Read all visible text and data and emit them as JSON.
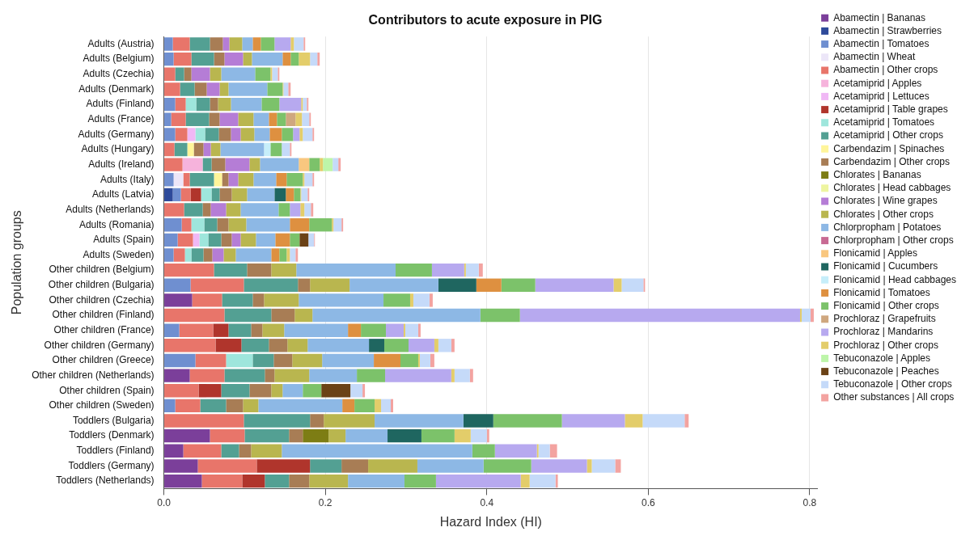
{
  "chart_data": {
    "type": "bar",
    "orientation": "horizontal",
    "stacked": true,
    "title": "Contributors to acute exposure in PIG",
    "xlabel": "Hazard Index (HI)",
    "ylabel": "Population groups",
    "categories": [
      "Adults (Austria)",
      "Adults (Belgium)",
      "Adults (Czechia)",
      "Adults (Denmark)",
      "Adults (Finland)",
      "Adults (France)",
      "Adults (Germany)",
      "Adults (Hungary)",
      "Adults (Ireland)",
      "Adults (Italy)",
      "Adults (Latvia)",
      "Adults (Netherlands)",
      "Adults (Romania)",
      "Adults (Spain)",
      "Adults (Sweden)",
      "Other children (Belgium)",
      "Other children (Bulgaria)",
      "Other children (Czechia)",
      "Other children (Finland)",
      "Other children (France)",
      "Other children (Germany)",
      "Other children (Greece)",
      "Other children (Netherlands)",
      "Other children (Spain)",
      "Other children (Sweden)",
      "Toddlers (Bulgaria)",
      "Toddlers (Denmark)",
      "Toddlers (Finland)",
      "Toddlers (Germany)",
      "Toddlers (Netherlands)"
    ],
    "xlim": [
      0,
      0.81
    ],
    "xticks": [
      {
        "value": 0,
        "label": "0.0"
      },
      {
        "value": 0.2,
        "label": "0.2"
      },
      {
        "value": 0.4,
        "label": "0.4"
      },
      {
        "value": 0.6,
        "label": "0.6"
      },
      {
        "value": 0.8,
        "label": "0.8"
      }
    ],
    "grid": "x",
    "legend": "right",
    "series": [
      {
        "name": "Abamectin | Bananas",
        "color": "#7b3f9a",
        "values": [
          null,
          null,
          null,
          null,
          null,
          null,
          null,
          null,
          null,
          null,
          null,
          null,
          null,
          null,
          null,
          null,
          null,
          0.035,
          null,
          null,
          null,
          null,
          0.032,
          null,
          null,
          null,
          0.057,
          0.024,
          0.042,
          0.047
        ]
      },
      {
        "name": "Abamectin | Strawberries",
        "color": "#2e4a9a",
        "values": [
          null,
          null,
          null,
          null,
          null,
          null,
          null,
          null,
          null,
          null,
          0.011,
          null,
          null,
          null,
          null,
          null,
          null,
          null,
          null,
          null,
          null,
          null,
          null,
          null,
          null,
          null,
          null,
          null,
          null,
          null
        ]
      },
      {
        "name": "Abamectin | Tomatoes",
        "color": "#6f8fd0",
        "values": [
          0.011,
          0.012,
          null,
          null,
          0.014,
          0.009,
          0.014,
          null,
          null,
          0.012,
          0.01,
          null,
          0.022,
          0.017,
          0.012,
          null,
          0.033,
          null,
          null,
          0.019,
          null,
          0.039,
          null,
          null,
          0.014,
          null,
          null,
          null,
          null,
          null
        ]
      },
      {
        "name": "Abamectin | Wheat",
        "color": "#ece6f8",
        "values": [
          null,
          null,
          null,
          null,
          null,
          null,
          null,
          null,
          null,
          0.012,
          null,
          null,
          null,
          null,
          null,
          null,
          null,
          null,
          null,
          null,
          null,
          null,
          null,
          null,
          null,
          null,
          null,
          null,
          null,
          null
        ]
      },
      {
        "name": "Abamectin | Other crops",
        "color": "#e8756a",
        "values": [
          0.021,
          0.022,
          0.014,
          0.02,
          0.013,
          0.018,
          0.015,
          0.013,
          0.023,
          0.008,
          0.012,
          0.025,
          0.012,
          0.019,
          0.014,
          0.062,
          0.066,
          0.037,
          0.075,
          0.042,
          0.064,
          0.038,
          0.043,
          0.043,
          0.031,
          0.099,
          0.043,
          0.047,
          0.073,
          0.05
        ]
      },
      {
        "name": "Acetamiprid | Apples",
        "color": "#f6b3dc",
        "values": [
          null,
          null,
          null,
          null,
          null,
          null,
          null,
          null,
          0.025,
          null,
          null,
          null,
          null,
          null,
          null,
          null,
          null,
          null,
          null,
          null,
          null,
          null,
          null,
          null,
          null,
          null,
          null,
          null,
          null,
          null
        ]
      },
      {
        "name": "Acetamiprid | Lettuces",
        "color": "#f0b8f5",
        "values": [
          null,
          null,
          null,
          null,
          null,
          null,
          0.01,
          null,
          null,
          null,
          null,
          null,
          null,
          0.008,
          null,
          null,
          null,
          null,
          null,
          null,
          null,
          null,
          null,
          null,
          null,
          null,
          null,
          null,
          null,
          null
        ]
      },
      {
        "name": "Acetamiprid | Table grapes",
        "color": "#b0352c",
        "values": [
          null,
          null,
          null,
          null,
          null,
          null,
          null,
          null,
          null,
          null,
          0.013,
          null,
          null,
          null,
          null,
          null,
          null,
          null,
          null,
          0.019,
          0.032,
          null,
          null,
          0.028,
          null,
          null,
          null,
          null,
          0.066,
          0.028
        ]
      },
      {
        "name": "Acetamiprid | Tomatoes",
        "color": "#9ee6dc",
        "values": [
          null,
          null,
          null,
          null,
          0.013,
          null,
          0.012,
          null,
          null,
          null,
          0.013,
          null,
          0.016,
          0.011,
          0.008,
          null,
          null,
          null,
          null,
          null,
          null,
          0.033,
          null,
          null,
          null,
          null,
          null,
          null,
          null,
          null
        ]
      },
      {
        "name": "Acetamiprid | Other crops",
        "color": "#53a093",
        "values": [
          0.025,
          0.028,
          0.011,
          0.018,
          0.017,
          0.029,
          0.017,
          0.016,
          0.011,
          0.03,
          0.01,
          0.023,
          0.016,
          0.016,
          0.015,
          0.041,
          0.067,
          0.038,
          0.058,
          0.028,
          0.034,
          0.026,
          0.05,
          0.035,
          0.032,
          0.082,
          0.055,
          0.022,
          0.039,
          0.03
        ]
      },
      {
        "name": "Carbendazim | Spinaches",
        "color": "#fff59a",
        "values": [
          null,
          null,
          null,
          null,
          null,
          null,
          null,
          0.008,
          null,
          0.01,
          null,
          null,
          null,
          null,
          null,
          null,
          null,
          null,
          null,
          null,
          null,
          null,
          null,
          null,
          null,
          null,
          null,
          null,
          null,
          null
        ]
      },
      {
        "name": "Carbendazim | Other crops",
        "color": "#a87d55",
        "values": [
          0.016,
          0.013,
          0.009,
          0.015,
          0.01,
          0.013,
          0.015,
          0.012,
          0.017,
          0.008,
          0.015,
          0.01,
          0.014,
          0.013,
          0.011,
          0.03,
          0.015,
          0.014,
          0.029,
          0.014,
          0.023,
          0.023,
          0.012,
          0.027,
          0.021,
          0.017,
          0.017,
          0.015,
          0.033,
          0.025
        ]
      },
      {
        "name": "Chlorates | Bananas",
        "color": "#7d7d14",
        "values": [
          null,
          null,
          null,
          null,
          null,
          null,
          null,
          null,
          null,
          null,
          null,
          null,
          null,
          null,
          null,
          null,
          null,
          null,
          null,
          null,
          null,
          null,
          null,
          null,
          null,
          null,
          0.032,
          null,
          null,
          null
        ]
      },
      {
        "name": "Chlorates | Head cabbages",
        "color": "#eef5a0",
        "values": [
          null,
          null,
          null,
          null,
          null,
          null,
          null,
          null,
          null,
          null,
          null,
          null,
          null,
          null,
          null,
          null,
          null,
          null,
          null,
          null,
          null,
          null,
          null,
          null,
          null,
          null,
          null,
          null,
          null,
          null
        ]
      },
      {
        "name": "Chlorates | Wine grapes",
        "color": "#b57dd6",
        "values": [
          0.008,
          0.023,
          0.023,
          0.016,
          null,
          0.023,
          0.012,
          0.009,
          0.03,
          0.012,
          null,
          0.019,
          null,
          0.011,
          0.014,
          null,
          null,
          null,
          null,
          null,
          null,
          null,
          null,
          null,
          null,
          null,
          null,
          null,
          null,
          null
        ]
      },
      {
        "name": "Chlorates | Other crops",
        "color": "#b9b64f",
        "values": [
          0.016,
          0.011,
          0.014,
          0.011,
          0.016,
          0.019,
          0.017,
          0.012,
          0.013,
          0.019,
          0.019,
          0.018,
          0.022,
          0.019,
          0.015,
          0.031,
          0.049,
          0.043,
          0.022,
          0.027,
          0.025,
          0.037,
          0.043,
          0.014,
          0.019,
          0.063,
          0.021,
          0.038,
          0.061,
          0.048
        ]
      },
      {
        "name": "Chlorpropham | Potatoes",
        "color": "#8db8e5",
        "values": [
          0.013,
          0.038,
          0.042,
          0.048,
          0.038,
          0.019,
          0.019,
          0.054,
          0.048,
          0.028,
          0.034,
          0.047,
          0.054,
          0.024,
          0.044,
          0.123,
          0.11,
          0.105,
          0.208,
          0.079,
          0.076,
          0.064,
          0.059,
          0.025,
          0.104,
          0.11,
          0.052,
          0.236,
          0.082,
          0.07
        ]
      },
      {
        "name": "Chlorpropham | Other crops",
        "color": "#c86a93",
        "values": [
          null,
          null,
          null,
          null,
          null,
          null,
          null,
          null,
          null,
          null,
          null,
          null,
          null,
          null,
          null,
          null,
          null,
          null,
          null,
          null,
          null,
          null,
          null,
          null,
          null,
          null,
          null,
          null,
          null,
          null
        ]
      },
      {
        "name": "Flonicamid | Apples",
        "color": "#f9c77f",
        "values": [
          null,
          null,
          null,
          null,
          null,
          null,
          null,
          null,
          0.013,
          null,
          null,
          null,
          null,
          null,
          null,
          null,
          null,
          null,
          null,
          null,
          null,
          null,
          null,
          null,
          null,
          null,
          null,
          null,
          null,
          null
        ]
      },
      {
        "name": "Flonicamid | Cucumbers",
        "color": "#1f6660",
        "values": [
          null,
          null,
          null,
          null,
          null,
          null,
          null,
          null,
          null,
          null,
          0.014,
          null,
          null,
          null,
          null,
          null,
          0.047,
          null,
          null,
          null,
          0.019,
          null,
          null,
          null,
          null,
          0.037,
          0.042,
          null,
          null,
          null
        ]
      },
      {
        "name": "Flonicamid | Head cabbages",
        "color": "#c6eefa",
        "values": [
          null,
          null,
          null,
          null,
          null,
          null,
          null,
          0.008,
          null,
          null,
          null,
          null,
          null,
          null,
          null,
          null,
          null,
          null,
          null,
          null,
          null,
          null,
          null,
          null,
          null,
          null,
          null,
          null,
          null,
          null
        ]
      },
      {
        "name": "Flonicamid | Tomatoes",
        "color": "#de9040",
        "values": [
          0.01,
          0.01,
          null,
          null,
          null,
          0.01,
          0.015,
          null,
          null,
          0.013,
          0.01,
          null,
          0.024,
          0.018,
          0.01,
          null,
          0.031,
          null,
          null,
          0.016,
          null,
          0.033,
          null,
          null,
          0.015,
          null,
          null,
          null,
          null,
          null
        ]
      },
      {
        "name": "Flonicamid | Other crops",
        "color": "#7cc26a",
        "values": [
          0.017,
          0.01,
          0.019,
          0.019,
          0.022,
          0.011,
          0.014,
          0.014,
          0.013,
          0.02,
          0.008,
          0.014,
          0.028,
          0.012,
          0.009,
          0.045,
          0.042,
          0.033,
          0.049,
          0.031,
          0.03,
          0.022,
          0.035,
          0.023,
          0.025,
          0.085,
          0.041,
          0.028,
          0.059,
          0.039
        ]
      },
      {
        "name": "Prochloraz | Grapefruits",
        "color": "#cfa77f",
        "values": [
          null,
          null,
          null,
          null,
          null,
          0.012,
          null,
          null,
          null,
          null,
          null,
          null,
          null,
          null,
          null,
          null,
          null,
          null,
          null,
          null,
          null,
          null,
          null,
          null,
          null,
          null,
          null,
          null,
          null,
          null
        ]
      },
      {
        "name": "Prochloraz | Mandarins",
        "color": "#b7a9ef",
        "values": [
          0.02,
          null,
          null,
          null,
          0.027,
          null,
          0.008,
          null,
          null,
          null,
          null,
          0.013,
          null,
          null,
          null,
          0.04,
          0.097,
          null,
          0.347,
          0.022,
          0.032,
          null,
          0.082,
          null,
          null,
          0.078,
          null,
          0.052,
          0.069,
          0.105
        ]
      },
      {
        "name": "Prochloraz | Other crops",
        "color": "#e3cd6a",
        "values": [
          0.004,
          0.014,
          0.002,
          0.001,
          0.002,
          0.008,
          0.004,
          null,
          0.004,
          0.002,
          0.001,
          0.005,
          0.002,
          null,
          0.004,
          0.002,
          0.01,
          0.004,
          0.002,
          0.002,
          0.005,
          0.002,
          0.004,
          null,
          0.008,
          0.022,
          0.02,
          0.002,
          0.006,
          0.011
        ]
      },
      {
        "name": "Tebuconazole | Apples",
        "color": "#bdf5a9",
        "values": [
          null,
          null,
          null,
          null,
          null,
          null,
          null,
          null,
          0.012,
          null,
          null,
          null,
          null,
          null,
          null,
          null,
          null,
          null,
          null,
          null,
          null,
          null,
          null,
          null,
          null,
          null,
          null,
          null,
          null,
          null
        ]
      },
      {
        "name": "Tebuconazole | Peaches",
        "color": "#6b4216",
        "values": [
          null,
          null,
          null,
          null,
          null,
          null,
          null,
          null,
          null,
          null,
          null,
          null,
          null,
          0.011,
          null,
          null,
          null,
          null,
          null,
          null,
          null,
          null,
          null,
          0.036,
          null,
          null,
          null,
          null,
          null,
          null
        ]
      },
      {
        "name": "Tebuconazole | Other crops",
        "color": "#c5daf9",
        "values": [
          0.012,
          0.009,
          0.007,
          0.006,
          0.005,
          0.009,
          0.012,
          0.01,
          0.007,
          0.01,
          0.008,
          0.008,
          0.01,
          0.007,
          0.007,
          0.016,
          0.027,
          0.02,
          0.011,
          0.016,
          0.016,
          0.013,
          0.019,
          0.015,
          0.012,
          0.052,
          0.02,
          0.014,
          0.029,
          0.032
        ]
      },
      {
        "name": "Other substances | All crops",
        "color": "#f3a3a0",
        "values": [
          0.002,
          0.003,
          0.002,
          0.003,
          0.002,
          0.002,
          0.002,
          0.002,
          0.003,
          0.002,
          0.002,
          0.003,
          0.002,
          0.001,
          0.003,
          0.005,
          0.002,
          0.004,
          0.004,
          0.003,
          0.004,
          0.005,
          0.004,
          0.003,
          0.003,
          0.005,
          0.003,
          0.009,
          0.007,
          0.003
        ]
      }
    ]
  }
}
